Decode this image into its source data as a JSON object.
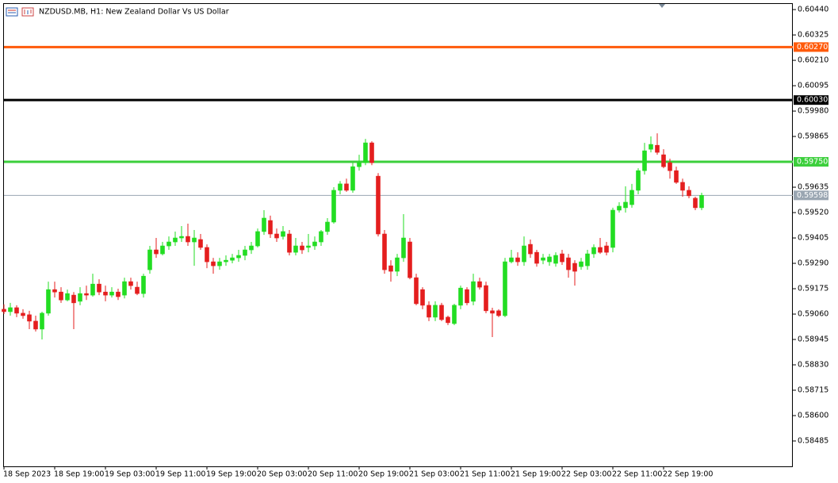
{
  "chart_data": {
    "type": "candlestick",
    "title": "NZDUSD.MB, H1:  New Zealand Dollar Vs US Dollar",
    "up_color": "#22dd22",
    "down_color": "#e41e1e",
    "ylim": [
      0.5837,
      0.60469
    ],
    "yticks": [
      {
        "value": 0.6044,
        "label": "0.60440"
      },
      0.60325,
      {
        "value": 0.6021,
        "label": "0.60210"
      },
      0.60095,
      {
        "value": 0.5998,
        "label": "0.59980"
      },
      0.59865,
      0.59635,
      {
        "value": 0.5952,
        "label": "0.59520"
      },
      0.59405,
      {
        "value": 0.5929,
        "label": "0.59290"
      },
      0.59175,
      {
        "value": 0.5906,
        "label": "0.59060"
      },
      0.58945,
      {
        "value": 0.5883,
        "label": "0.58830"
      },
      0.58715,
      {
        "value": 0.586,
        "label": "0.58600"
      },
      0.58485
    ],
    "levels": [
      {
        "value": 0.6027,
        "label": "0.60270",
        "color": "#ff5a0a",
        "width": 3
      },
      {
        "value": 0.6003,
        "label": "0.60030",
        "color": "#000000",
        "width": 3
      },
      {
        "value": 0.5975,
        "label": "0.59750",
        "color": "#3ccf3c",
        "width": 3
      },
      {
        "value": 0.59598,
        "label": "0.59598",
        "color": "#9aa6b2",
        "width": 1
      }
    ],
    "categories": [
      "18 Sep 2023",
      null,
      null,
      null,
      null,
      null,
      null,
      null,
      "18 Sep 19:00",
      null,
      null,
      null,
      null,
      null,
      null,
      null,
      "19 Sep 03:00",
      null,
      null,
      null,
      null,
      null,
      null,
      null,
      "19 Sep 11:00",
      null,
      null,
      null,
      null,
      null,
      null,
      null,
      "19 Sep 19:00",
      null,
      null,
      null,
      null,
      null,
      null,
      null,
      "20 Sep 03:00",
      null,
      null,
      null,
      null,
      null,
      null,
      null,
      "20 Sep 11:00",
      null,
      null,
      null,
      null,
      null,
      null,
      null,
      "20 Sep 19:00",
      null,
      null,
      null,
      null,
      null,
      null,
      null,
      "21 Sep 03:00",
      null,
      null,
      null,
      null,
      null,
      null,
      null,
      "21 Sep 11:00",
      null,
      null,
      null,
      null,
      null,
      null,
      null,
      "21 Sep 19:00",
      null,
      null,
      null,
      null,
      null,
      null,
      null,
      "22 Sep 03:00",
      null,
      null,
      null,
      null,
      null,
      null,
      null,
      "22 Sep 11:00",
      null,
      null,
      null,
      null,
      null,
      null,
      null,
      "22 Sep 19:00",
      null,
      null,
      null,
      null,
      null,
      null
    ],
    "open": [
      0.59082,
      0.59071,
      0.59089,
      0.59064,
      0.59057,
      0.59028,
      0.58992,
      0.59064,
      0.59171,
      0.5916,
      0.59124,
      0.59146,
      0.59118,
      0.59153,
      0.59146,
      0.59196,
      0.5916,
      0.59146,
      0.5916,
      0.59146,
      0.59207,
      0.59182,
      0.59153,
      0.59261,
      0.59351,
      0.59333,
      0.59369,
      0.59387,
      0.59405,
      0.59412,
      0.59387,
      0.59398,
      0.59362,
      0.59297,
      0.59279,
      0.59297,
      0.59304,
      0.59315,
      0.59326,
      0.59351,
      0.59369,
      0.59434,
      0.59484,
      0.59423,
      0.59412,
      0.59423,
      0.5934,
      0.59369,
      0.59362,
      0.59369,
      0.59387,
      0.59434,
      0.59477,
      0.59621,
      0.5965,
      0.59621,
      0.59728,
      0.59746,
      0.59836,
      0.59685,
      0.59423,
      0.59279,
      0.59254,
      0.59315,
      0.59387,
      0.59225,
      0.59171,
      0.591,
      0.59046,
      0.591,
      0.59046,
      0.59017,
      0.591,
      0.59171,
      0.59118,
      0.59207,
      0.59189,
      0.59075,
      0.59075,
      0.59053,
      0.59297,
      0.59315,
      0.59297,
      0.59376,
      0.5934,
      0.59304,
      0.59297,
      0.5929,
      0.59333,
      0.59315,
      0.5929,
      0.59275,
      0.59279,
      0.59333,
      0.59362,
      0.59369,
      0.59362,
      0.59531,
      0.59542,
      0.59556,
      0.59621,
      0.5971,
      0.59807,
      0.59825,
      0.59782,
      0.59746,
      0.5971,
      0.59657,
      0.59621,
      0.59585,
      0.59542
    ],
    "high": [
      0.59104,
      0.59111,
      0.591,
      0.59082,
      0.59075,
      0.59053,
      0.59071,
      0.59207,
      0.59207,
      0.59182,
      0.59171,
      0.5916,
      0.59182,
      0.59189,
      0.59243,
      0.59218,
      0.59189,
      0.59182,
      0.59175,
      0.59225,
      0.59225,
      0.59207,
      0.59243,
      0.59369,
      0.59405,
      0.59387,
      0.59412,
      0.59434,
      0.59459,
      0.5947,
      0.59441,
      0.59423,
      0.59376,
      0.59315,
      0.59315,
      0.59326,
      0.59333,
      0.59351,
      0.59369,
      0.59387,
      0.59448,
      0.59531,
      0.59506,
      0.59448,
      0.59459,
      0.59441,
      0.59405,
      0.59387,
      0.59423,
      0.59412,
      0.59441,
      0.59495,
      0.59635,
      0.59663,
      0.59674,
      0.59746,
      0.59782,
      0.59854,
      0.59843,
      0.59699,
      0.59441,
      0.59304,
      0.59333,
      0.59513,
      0.59405,
      0.59243,
      0.59182,
      0.59118,
      0.59118,
      0.59111,
      0.59053,
      0.59107,
      0.59189,
      0.59182,
      0.59243,
      0.59225,
      0.59207,
      0.59089,
      0.59082,
      0.59315,
      0.59351,
      0.5934,
      0.59412,
      0.59398,
      0.59351,
      0.59333,
      0.59333,
      0.5934,
      0.59351,
      0.59333,
      0.59304,
      0.59315,
      0.59351,
      0.59376,
      0.59405,
      0.59387,
      0.59542,
      0.59567,
      0.59639,
      0.5965,
      0.59721,
      0.59836,
      0.59865,
      0.59879,
      0.59807,
      0.59764,
      0.59728,
      0.59674,
      0.59639,
      0.59592,
      0.5961
    ],
    "low": [
      0.5906,
      0.59053,
      0.59046,
      0.59039,
      0.58992,
      0.58981,
      0.58945,
      0.59053,
      0.59135,
      0.59111,
      0.59118,
      0.58992,
      0.591,
      0.59124,
      0.59139,
      0.59146,
      0.59118,
      0.59135,
      0.59124,
      0.59131,
      0.59171,
      0.59146,
      0.59135,
      0.59243,
      0.59315,
      0.59326,
      0.59351,
      0.59369,
      0.59387,
      0.59369,
      0.59279,
      0.59351,
      0.59268,
      0.59243,
      0.59261,
      0.59279,
      0.5929,
      0.59297,
      0.59304,
      0.59333,
      0.59362,
      0.59419,
      0.59405,
      0.59387,
      0.59398,
      0.59326,
      0.59326,
      0.59333,
      0.5934,
      0.59351,
      0.59369,
      0.59419,
      0.5947,
      0.59603,
      0.59614,
      0.5961,
      0.5971,
      0.59735,
      0.59735,
      0.59412,
      0.59243,
      0.59207,
      0.59232,
      0.59297,
      0.59218,
      0.591,
      0.59082,
      0.59028,
      0.59028,
      0.59028,
      0.5901,
      0.5901,
      0.59082,
      0.591,
      0.591,
      0.59171,
      0.59064,
      0.58956,
      0.59046,
      0.59046,
      0.5929,
      0.59279,
      0.59279,
      0.59315,
      0.59275,
      0.59286,
      0.59279,
      0.59275,
      0.59283,
      0.59225,
      0.59189,
      0.59261,
      0.59261,
      0.59315,
      0.59333,
      0.59326,
      0.5934,
      0.5952,
      0.5952,
      0.59542,
      0.59603,
      0.59692,
      0.59793,
      0.59782,
      0.59721,
      0.59674,
      0.5965,
      0.59592,
      0.59585,
      0.59531,
      0.59531
    ],
    "close": [
      0.59071,
      0.59089,
      0.59064,
      0.59053,
      0.59028,
      0.58992,
      0.59064,
      0.59171,
      0.5916,
      0.59124,
      0.59153,
      0.59111,
      0.59153,
      0.59146,
      0.59196,
      0.5916,
      0.59146,
      0.5916,
      0.59139,
      0.59207,
      0.59189,
      0.59153,
      0.59232,
      0.59351,
      0.59333,
      0.59369,
      0.59387,
      0.59405,
      0.59412,
      0.59387,
      0.59405,
      0.59362,
      0.59297,
      0.59279,
      0.59297,
      0.59304,
      0.59315,
      0.59326,
      0.59351,
      0.59369,
      0.59434,
      0.59495,
      0.59423,
      0.59405,
      0.59434,
      0.5934,
      0.59369,
      0.59351,
      0.59369,
      0.59387,
      0.59434,
      0.59477,
      0.59621,
      0.5965,
      0.59621,
      0.59728,
      0.59746,
      0.59836,
      0.59746,
      0.59423,
      0.59261,
      0.59254,
      0.59315,
      0.59405,
      0.59225,
      0.59107,
      0.591,
      0.59046,
      0.591,
      0.59035,
      0.59021,
      0.591,
      0.59178,
      0.59111,
      0.59207,
      0.59182,
      0.59075,
      0.59064,
      0.59053,
      0.59297,
      0.59315,
      0.59297,
      0.59369,
      0.59333,
      0.5929,
      0.59315,
      0.59319,
      0.59326,
      0.59297,
      0.59261,
      0.59254,
      0.59297,
      0.59333,
      0.59362,
      0.5934,
      0.5934,
      0.59531,
      0.59549,
      0.59567,
      0.59621,
      0.5971,
      0.598,
      0.59829,
      0.59793,
      0.59728,
      0.5971,
      0.59657,
      0.59621,
      0.59596,
      0.59542,
      0.59598
    ]
  }
}
